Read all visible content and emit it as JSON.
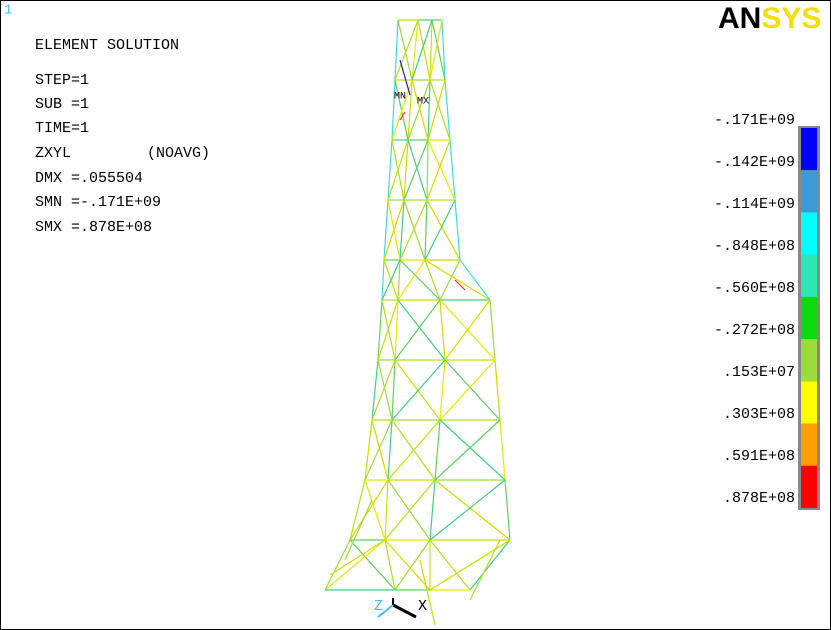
{
  "window_number": "1",
  "logo": {
    "parts": [
      "AN",
      "SYS"
    ],
    "colors": [
      "#000000",
      "#f0e000"
    ]
  },
  "info": {
    "title": "ELEMENT SOLUTION",
    "lines": [
      "STEP=1",
      "SUB =1",
      "TIME=1"
    ],
    "result": "ZXYL",
    "averaging": "(NOAVG)",
    "stats": [
      "DMX =.055504",
      "SMN =-.171E+09",
      "SMX =.878E+08"
    ]
  },
  "markers": {
    "min": "MN",
    "max": "MX"
  },
  "legend": {
    "labels": [
      "-.171E+09",
      "-.142E+09",
      "-.114E+09",
      "-.848E+08",
      "-.560E+08",
      "-.272E+08",
      ".153E+07",
      ".303E+08",
      ".591E+08",
      ".878E+08"
    ],
    "colors": [
      "#0000ff",
      "#3d9ad6",
      "#00ffff",
      "#2de6b4",
      "#10d810",
      "#9adc3c",
      "#ffff00",
      "#ffa000",
      "#ff0000"
    ]
  },
  "triad": {
    "z": "Z",
    "x": "X"
  }
}
